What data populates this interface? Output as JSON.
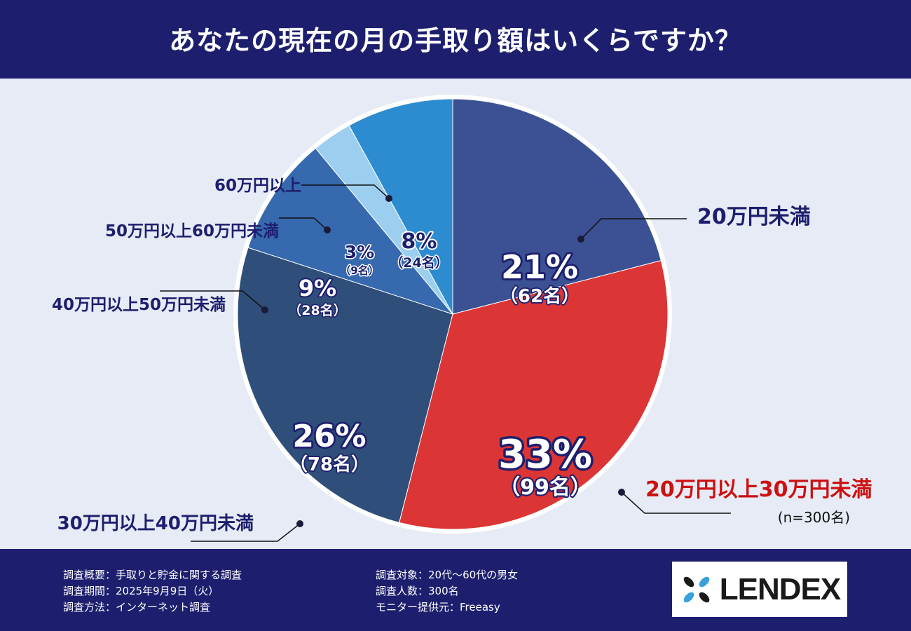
{
  "header": {
    "title": "あなたの現在の月の手取り額はいくらですか？"
  },
  "chart_data": {
    "type": "pie",
    "sample_note": "(n=300名)",
    "slices": [
      {
        "label": "20万円未満",
        "percent": 21,
        "pct_label": "21%",
        "count_label": "（62名）",
        "color": "#3b5193",
        "label_color": "#1d1f6e",
        "value_color": "#ffffff"
      },
      {
        "label": "20万円以上30万円未満",
        "percent": 33,
        "pct_label": "33%",
        "count_label": "（99名）",
        "color": "#dc3535",
        "label_color": "#cc1111",
        "value_color": "#ffffff"
      },
      {
        "label": "30万円以上40万円未満",
        "percent": 26,
        "pct_label": "26%",
        "count_label": "（78名）",
        "color": "#2f4e79",
        "label_color": "#1d1f6e",
        "value_color": "#ffffff"
      },
      {
        "label": "40万円以上50万円未満",
        "percent": 9,
        "pct_label": "9%",
        "count_label": "（28名）",
        "color": "#3669ae",
        "label_color": "#1d1f6e",
        "value_color": "#ffffff"
      },
      {
        "label": "50万円以上60万円未満",
        "percent": 3,
        "pct_label": "3%",
        "count_label": "（9名）",
        "color": "#9ccfef",
        "label_color": "#1d1f6e",
        "value_color": "#1d1f6e"
      },
      {
        "label": "60万円以上",
        "percent": 8,
        "pct_label": "8%",
        "count_label": "（24名）",
        "color": "#2d8ccf",
        "label_color": "#1d1f6e",
        "value_color": "#1d1f6e"
      }
    ]
  },
  "footer": {
    "left": [
      "調査概要：手取りと貯金に関する調査",
      "調査期間：2025年9月9日（火）",
      "調査方法：インターネット調査"
    ],
    "right": [
      "調査対象：20代〜60代の男女",
      "調査人数：300名",
      "モニター提供元：Freeasy"
    ],
    "logo_text": "LENDEX"
  }
}
